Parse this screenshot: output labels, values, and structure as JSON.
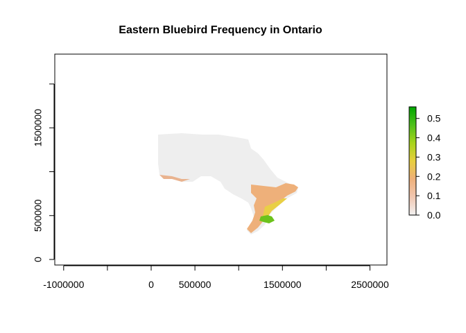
{
  "title": "Eastern Bluebird Frequency in Ontario",
  "x_ticks": [
    {
      "value": -1000000,
      "label": "-1000000"
    },
    {
      "value": -500000,
      "label": ""
    },
    {
      "value": 0,
      "label": "0"
    },
    {
      "value": 500000,
      "label": "500000"
    },
    {
      "value": 1000000,
      "label": ""
    },
    {
      "value": 1500000,
      "label": "1500000"
    },
    {
      "value": 2000000,
      "label": ""
    },
    {
      "value": 2500000,
      "label": "2500000"
    }
  ],
  "y_ticks": [
    {
      "value": 0,
      "label": "0"
    },
    {
      "value": 500000,
      "label": "500000"
    },
    {
      "value": 1000000,
      "label": ""
    },
    {
      "value": 1500000,
      "label": "1500000"
    },
    {
      "value": 2000000,
      "label": ""
    }
  ],
  "legend": {
    "ticks": [
      {
        "value": 0.0,
        "label": "0.0"
      },
      {
        "value": 0.1,
        "label": "0.1"
      },
      {
        "value": 0.2,
        "label": "0.2"
      },
      {
        "value": 0.3,
        "label": "0.3"
      },
      {
        "value": 0.4,
        "label": "0.4"
      },
      {
        "value": 0.5,
        "label": "0.5"
      }
    ],
    "range": [
      0,
      0.56
    ],
    "colors": [
      "#f2f2f2",
      "#f1c7b1",
      "#eeb07a",
      "#e8cf3e",
      "#a7d41b",
      "#4ec01b",
      "#00a600"
    ],
    "placement": "right"
  },
  "map": {
    "xlim": [
      -1000000,
      2700000
    ],
    "ylim": [
      -50000,
      2400000
    ],
    "background_color": "#f0f0f0",
    "low_color": "#eeaa84",
    "mid_color": "#e9c14e",
    "high_color": "#6cc21c"
  }
}
